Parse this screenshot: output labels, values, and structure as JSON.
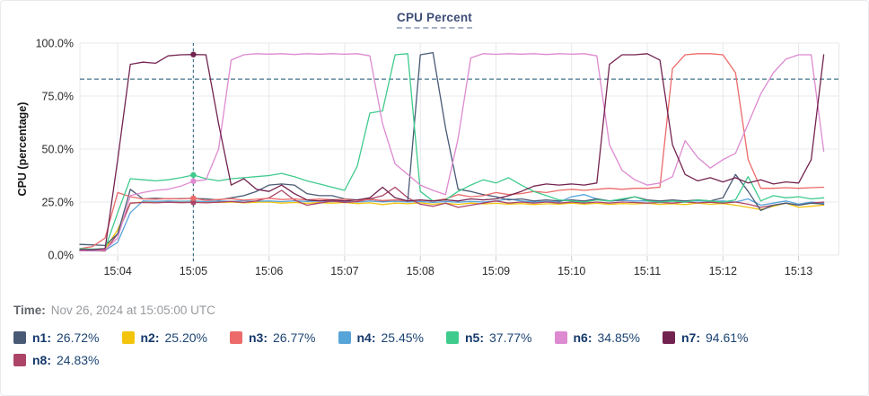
{
  "title": "CPU Percent",
  "time": {
    "label": "Time:",
    "value": "Nov 26, 2024 at 15:05:00 UTC"
  },
  "colors": {
    "title": "#3d4d77",
    "grid_line": "#e8e8ec",
    "tick_mark": "#cfcfd4",
    "axis_text": "#2a2a2e",
    "threshold_line": "#44758c",
    "crosshair_line": "#44758c",
    "legend_name_text": "#14386b",
    "legend_value_text": "#1c4473"
  },
  "chart_data": {
    "type": "line",
    "title": "CPU Percent",
    "xlabel": "",
    "ylabel": "CPU (percentage)",
    "ylim": [
      0,
      100
    ],
    "grid": true,
    "legend_position": "bottom",
    "y_ticks": [
      {
        "label": "100.0%",
        "value": 100
      },
      {
        "label": "75.0%",
        "value": 75
      },
      {
        "label": "50.0%",
        "value": 50
      },
      {
        "label": "25.0%",
        "value": 25
      },
      {
        "label": "0.0%",
        "value": 0
      }
    ],
    "x_ticks": [
      {
        "label": "15:04",
        "seconds": 30
      },
      {
        "label": "15:05",
        "seconds": 90
      },
      {
        "label": "15:06",
        "seconds": 150
      },
      {
        "label": "15:07",
        "seconds": 210
      },
      {
        "label": "15:08",
        "seconds": 270
      },
      {
        "label": "15:09",
        "seconds": 330
      },
      {
        "label": "15:10",
        "seconds": 390
      },
      {
        "label": "15:11",
        "seconds": 450
      },
      {
        "label": "15:12",
        "seconds": 510
      },
      {
        "label": "15:13",
        "seconds": 570
      }
    ],
    "x_start_label": "15:03:30",
    "sample_interval_seconds": 10,
    "x_axis_max_seconds": 602,
    "data_duration_seconds": 590,
    "threshold_value": 83,
    "crosshair": {
      "time_label": "15:05:00",
      "sample_index": 9,
      "seconds": 90
    },
    "series": [
      {
        "name": "n1",
        "legend_label": "n1:",
        "legend_value": "26.72%",
        "color": "#495a75",
        "values": [
          5,
          4.8,
          4.5,
          10,
          31,
          26.5,
          26.8,
          26.5,
          26.6,
          26.72,
          26.5,
          26,
          27,
          28,
          30,
          33,
          33.5,
          33,
          29,
          28,
          28,
          26.5,
          26,
          26.5,
          25.5,
          26,
          25.5,
          94.5,
          95.5,
          60,
          31,
          30,
          28.5,
          27.5,
          26,
          26.5,
          25.5,
          26,
          25.5,
          26,
          25.5,
          26.5,
          25.5,
          26,
          27.5,
          26,
          25.5,
          26,
          25.5,
          26,
          25.5,
          27,
          38,
          30,
          21,
          23.5,
          24.5,
          23.5,
          24.5,
          24
        ]
      },
      {
        "name": "n2",
        "legend_label": "n2:",
        "legend_value": "25.20%",
        "color": "#f2c40e",
        "values": [
          2.5,
          2.5,
          2.8,
          12,
          24.5,
          25,
          24.8,
          25,
          25.1,
          25.2,
          25,
          24.8,
          25,
          24.6,
          24.9,
          25,
          24.5,
          24.8,
          24.4,
          24.7,
          24.5,
          24.8,
          24.3,
          24.6,
          23.8,
          24.5,
          24.2,
          24.6,
          24,
          24.4,
          23.9,
          24.5,
          24.1,
          24.4,
          24,
          24.3,
          23.8,
          24.2,
          24,
          24.5,
          24,
          24.4,
          23.9,
          24.3,
          24.1,
          24.4,
          23.9,
          24.2,
          23.8,
          24.5,
          24,
          24.3,
          23.5,
          22.5,
          21.5,
          23,
          24.5,
          22.5,
          23,
          23.5
        ]
      },
      {
        "name": "n3",
        "legend_label": "n3:",
        "legend_value": "26.77%",
        "color": "#ec6a6a",
        "values": [
          3,
          4,
          8,
          29.5,
          27.5,
          26.5,
          26.3,
          26.6,
          26.5,
          26.77,
          25.8,
          26.2,
          26.6,
          25.9,
          26.3,
          26.8,
          26.2,
          26.5,
          26,
          26.4,
          26.1,
          26.3,
          25.8,
          26.2,
          25.7,
          26,
          25.6,
          25.9,
          25.5,
          26.5,
          28.5,
          27.5,
          28,
          29.5,
          28.5,
          29,
          30,
          29.5,
          30.5,
          31,
          30.5,
          31,
          31.5,
          31,
          31.5,
          31.5,
          32,
          88,
          94.5,
          95,
          95,
          94.5,
          86,
          45,
          31.5,
          31.5,
          31.8,
          31.5,
          31.8,
          32
        ]
      },
      {
        "name": "n4",
        "legend_label": "n4:",
        "legend_value": "25.45%",
        "color": "#57a4d9",
        "values": [
          2,
          2,
          2.2,
          6,
          20,
          25.5,
          25.3,
          25.5,
          25.4,
          25.45,
          25.2,
          25.5,
          25.3,
          25.6,
          25.4,
          25.5,
          25.2,
          25.6,
          25.3,
          25.5,
          25.2,
          25.4,
          25,
          25.5,
          25.1,
          25.4,
          25,
          25.3,
          24.8,
          25.2,
          24.9,
          25.3,
          25,
          25.5,
          26.5,
          25.5,
          25,
          25.3,
          25,
          27.5,
          28.5,
          26.5,
          25.5,
          25.8,
          25.5,
          25.6,
          25.3,
          25.5,
          25.2,
          25.6,
          25.3,
          25.5,
          25,
          26.5,
          23.5,
          24.5,
          25.5,
          24,
          25,
          24.5
        ]
      },
      {
        "name": "n5",
        "legend_label": "n5:",
        "legend_value": "37.77%",
        "color": "#3ecb8c",
        "values": [
          3,
          2.8,
          3,
          20,
          36,
          35.5,
          35,
          35.5,
          36.5,
          37.77,
          36,
          35,
          36,
          36.5,
          37,
          37.5,
          38.5,
          37,
          35,
          33.5,
          32,
          30.5,
          42,
          67,
          68,
          94.5,
          95,
          30,
          25.5,
          26,
          30,
          33,
          35.5,
          34,
          36.5,
          33,
          30,
          28,
          26,
          25.5,
          25,
          26,
          25.5,
          26.5,
          27.5,
          25.5,
          25,
          25.5,
          25,
          26,
          25.5,
          25,
          26,
          37,
          25.5,
          28,
          27,
          27.5,
          26.5,
          27
        ]
      },
      {
        "name": "n6",
        "legend_label": "n6:",
        "legend_value": "34.85%",
        "color": "#dd8ad0",
        "values": [
          2,
          2.2,
          2.5,
          8,
          28,
          29.5,
          30.5,
          31,
          32.5,
          34.85,
          35.5,
          50,
          92,
          94.5,
          95,
          94.8,
          95,
          94.6,
          95,
          94.8,
          95,
          94.8,
          95,
          94,
          62,
          43,
          38,
          33,
          30.5,
          28.5,
          55,
          93,
          95,
          94.7,
          95,
          94.8,
          95,
          94.6,
          95,
          94.8,
          95,
          94,
          52,
          40,
          35.5,
          33,
          34,
          37,
          54,
          46,
          41,
          45,
          48,
          62,
          76,
          86,
          92.5,
          94.5,
          94.5,
          49
        ]
      },
      {
        "name": "n7",
        "legend_label": "n7:",
        "legend_value": "94.61%",
        "color": "#73234f",
        "values": [
          2.5,
          2.5,
          3,
          45,
          90,
          91,
          90.5,
          94,
          94.5,
          94.61,
          94.5,
          62,
          33,
          36,
          31,
          30,
          33,
          29,
          26,
          25.5,
          26,
          25.5,
          26,
          27,
          32,
          27,
          25.5,
          26,
          25.5,
          26,
          25.5,
          26.5,
          26,
          26.5,
          28,
          30,
          32.5,
          33.5,
          33,
          33.5,
          33,
          34,
          90,
          94.5,
          94.5,
          95,
          92,
          52,
          38,
          35,
          36.5,
          34.5,
          36.5,
          34,
          35.5,
          33.5,
          34.5,
          34,
          45,
          94.5
        ]
      },
      {
        "name": "n8",
        "legend_label": "n8:",
        "legend_value": "24.83%",
        "color": "#ac4568",
        "values": [
          2,
          2.2,
          2,
          10,
          24.5,
          24.8,
          24.6,
          24.9,
          24.7,
          24.83,
          24.6,
          24.9,
          25.3,
          24.8,
          25.5,
          27,
          30.5,
          26,
          23.5,
          24.5,
          25.5,
          24.8,
          25.2,
          26.5,
          28,
          32,
          27,
          24,
          23,
          24.5,
          22.5,
          23.5,
          24.5,
          25.5,
          24.5,
          25,
          24.5,
          25,
          24.5,
          25,
          24.5,
          25,
          24.5,
          25,
          24.8,
          24.5,
          24.8,
          24.5,
          25,
          24.6,
          24.9,
          24.5,
          25,
          24,
          22.5,
          23.5,
          24.5,
          23.5,
          24.5,
          25
        ]
      }
    ]
  }
}
